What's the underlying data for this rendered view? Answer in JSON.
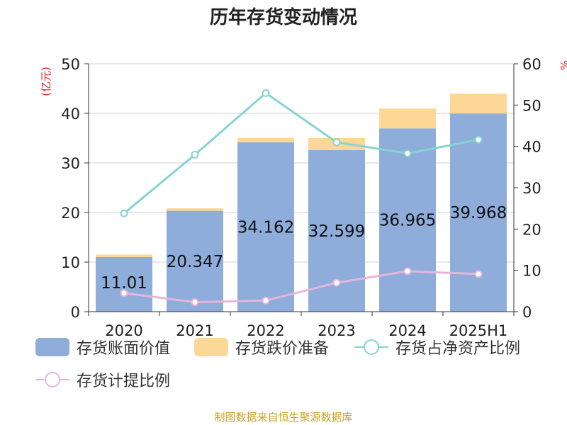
{
  "title": "历年存货变动情况",
  "source": "制图数据来自恒生聚源数据库",
  "chart_data": {
    "type": "bar",
    "stacked": true,
    "title": "历年存货变动情况",
    "categories": [
      "2020",
      "2021",
      "2022",
      "2023",
      "2024",
      "2025H1"
    ],
    "left_axis": {
      "label": "(亿元)",
      "range": [
        0,
        50
      ],
      "ticks": [
        "0",
        "10",
        "20",
        "30",
        "40",
        "50"
      ]
    },
    "right_axis": {
      "label": "%",
      "range": [
        0,
        60
      ],
      "ticks": [
        "0",
        "10",
        "20",
        "30",
        "40",
        "50",
        "60"
      ]
    },
    "grid": true,
    "legend_position": "bottom",
    "series": [
      {
        "name": "存货账面价值",
        "type": "bar",
        "axis": "left",
        "color": "#8eaddb",
        "values": [
          11.01,
          20.347,
          34.162,
          32.599,
          36.965,
          39.968
        ],
        "labels": [
          "11.01",
          "20.347",
          "34.162",
          "32.599",
          "36.965",
          "39.968"
        ]
      },
      {
        "name": "存货跌价准备",
        "type": "bar",
        "axis": "left",
        "color": "#fdd795",
        "values": [
          0.5,
          0.5,
          0.9,
          2.4,
          4.0,
          4.0
        ]
      },
      {
        "name": "存货占净资产比例",
        "type": "line",
        "axis": "right",
        "color": "#84d4d3",
        "values": [
          23.8,
          38.0,
          52.9,
          41.0,
          38.3,
          41.6
        ]
      },
      {
        "name": "存货计提比例",
        "type": "line",
        "axis": "right",
        "color": "#e6b5dc",
        "values": [
          4.5,
          2.3,
          2.7,
          7.0,
          9.8,
          9.1
        ]
      }
    ]
  }
}
